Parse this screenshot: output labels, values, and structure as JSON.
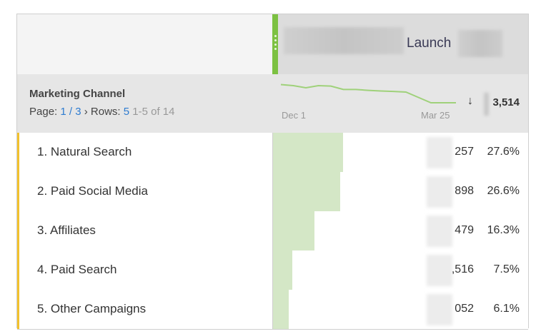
{
  "header": {
    "metric_title": "Launch"
  },
  "summary": {
    "dimension": "Marketing Channel",
    "page_label": "Page:",
    "page": "1 / 3",
    "rows_label": "Rows:",
    "rows": "5",
    "range": "1-5 of 14",
    "date_start": "Dec 1",
    "date_end": "Mar 25",
    "sort_icon": "arrow-down-icon",
    "total": "3,514"
  },
  "sparkline": [
    0.95,
    0.9,
    0.8,
    0.9,
    0.88,
    0.72,
    0.72,
    0.68,
    0.65,
    0.63,
    0.6,
    0.35,
    0.1,
    0.1,
    0.1
  ],
  "rows": [
    {
      "label": "1. Natural Search",
      "value": "257",
      "pct": "27.6%",
      "share": 27.6
    },
    {
      "label": "2. Paid Social Media",
      "value": "898",
      "pct": "26.6%",
      "share": 26.6
    },
    {
      "label": "3. Affiliates",
      "value": "479",
      "pct": "16.3%",
      "share": 16.3
    },
    {
      "label": "4. Paid Search",
      "value": ",516",
      "pct": "7.5%",
      "share": 7.5
    },
    {
      "label": "5. Other Campaigns",
      "value": "052",
      "pct": "6.1%",
      "share": 6.1
    }
  ],
  "colors": {
    "accent": "#7cc142",
    "bar": "#d4e7c6",
    "row_marker": "#f2c12e",
    "link": "#2d7bd0"
  }
}
